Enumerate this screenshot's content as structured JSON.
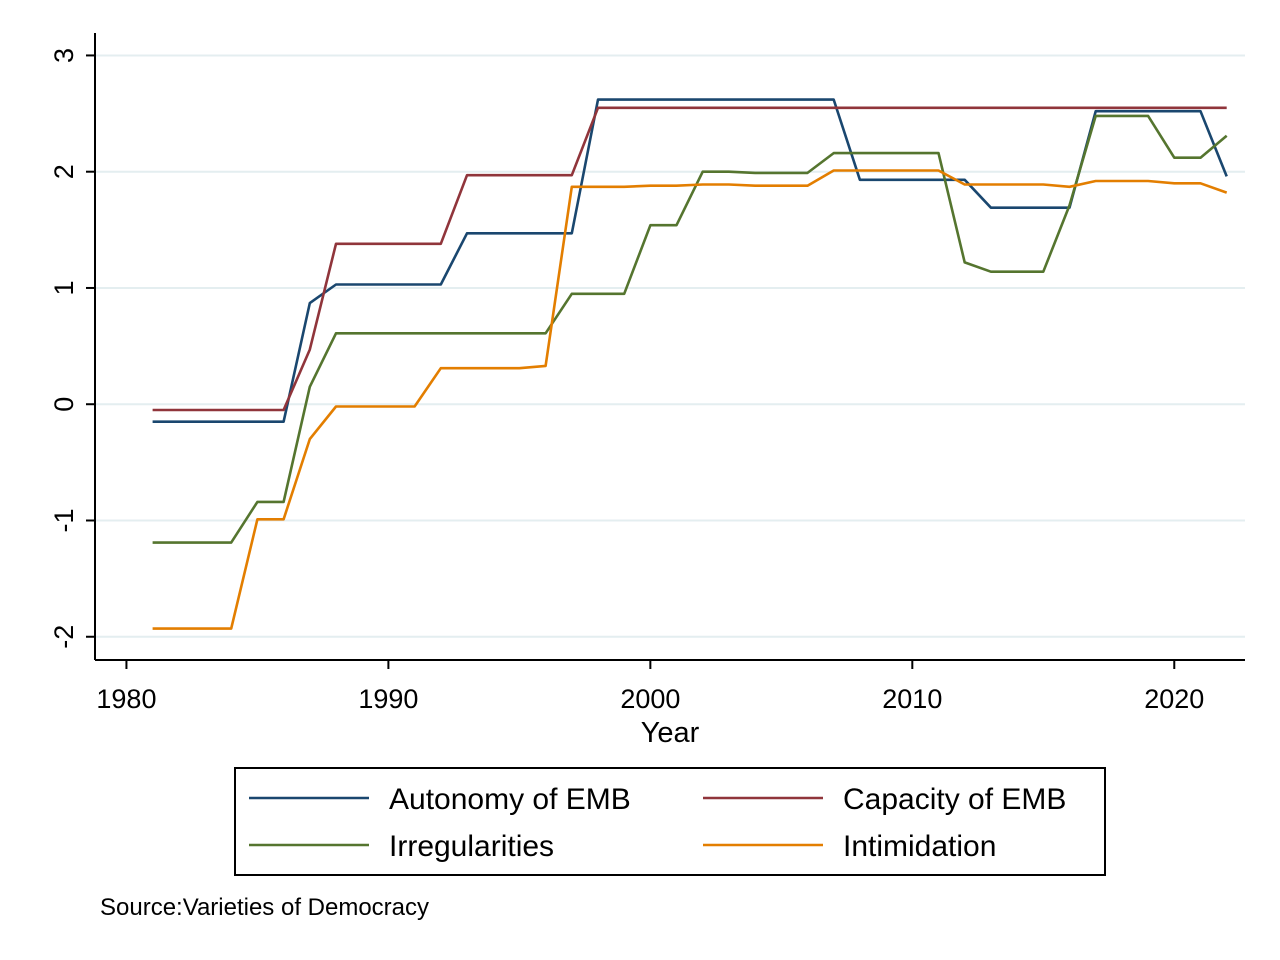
{
  "chart_data": {
    "type": "line",
    "title": "",
    "xlabel": "Year",
    "ylabel": "",
    "xlim": [
      1981,
      2022
    ],
    "ylim": [
      -2,
      3
    ],
    "x_ticks": [
      1980,
      1990,
      2000,
      2010,
      2020
    ],
    "y_ticks": [
      -2,
      -1,
      0,
      1,
      2,
      3
    ],
    "grid": true,
    "legend_placement": "bottom",
    "x": [
      1981,
      1982,
      1983,
      1984,
      1985,
      1986,
      1987,
      1988,
      1989,
      1990,
      1991,
      1992,
      1993,
      1994,
      1995,
      1996,
      1997,
      1998,
      1999,
      2000,
      2001,
      2002,
      2003,
      2004,
      2005,
      2006,
      2007,
      2008,
      2009,
      2010,
      2011,
      2012,
      2013,
      2014,
      2015,
      2016,
      2017,
      2018,
      2019,
      2020,
      2021,
      2022
    ],
    "series": [
      {
        "name": "Autonomy of EMB",
        "color": "#1a476f",
        "values": [
          -0.15,
          -0.15,
          -0.15,
          -0.15,
          -0.15,
          -0.15,
          0.87,
          1.03,
          1.03,
          1.03,
          1.03,
          1.03,
          1.47,
          1.47,
          1.47,
          1.47,
          1.47,
          2.62,
          2.62,
          2.62,
          2.62,
          2.62,
          2.62,
          2.62,
          2.62,
          2.62,
          2.62,
          1.93,
          1.93,
          1.93,
          1.93,
          1.93,
          1.69,
          1.69,
          1.69,
          1.69,
          2.52,
          2.52,
          2.52,
          2.52,
          2.52,
          1.96
        ]
      },
      {
        "name": "Capacity of EMB",
        "color": "#90353b",
        "values": [
          -0.05,
          -0.05,
          -0.05,
          -0.05,
          -0.05,
          -0.05,
          0.47,
          1.38,
          1.38,
          1.38,
          1.38,
          1.38,
          1.97,
          1.97,
          1.97,
          1.97,
          1.97,
          2.55,
          2.55,
          2.55,
          2.55,
          2.55,
          2.55,
          2.55,
          2.55,
          2.55,
          2.55,
          2.55,
          2.55,
          2.55,
          2.55,
          2.55,
          2.55,
          2.55,
          2.55,
          2.55,
          2.55,
          2.55,
          2.55,
          2.55,
          2.55,
          2.55
        ]
      },
      {
        "name": "Irregularities",
        "color": "#55752f",
        "values": [
          -1.19,
          -1.19,
          -1.19,
          -1.19,
          -0.84,
          -0.84,
          0.15,
          0.61,
          0.61,
          0.61,
          0.61,
          0.61,
          0.61,
          0.61,
          0.61,
          0.61,
          0.95,
          0.95,
          0.95,
          1.54,
          1.54,
          2.0,
          2.0,
          1.99,
          1.99,
          1.99,
          2.16,
          2.16,
          2.16,
          2.16,
          2.16,
          1.22,
          1.14,
          1.14,
          1.14,
          1.71,
          2.48,
          2.48,
          2.48,
          2.12,
          2.12,
          2.31
        ]
      },
      {
        "name": "Intimidation",
        "color": "#e37e00",
        "values": [
          -1.93,
          -1.93,
          -1.93,
          -1.93,
          -0.99,
          -0.99,
          -0.3,
          -0.02,
          -0.02,
          -0.02,
          -0.02,
          0.31,
          0.31,
          0.31,
          0.31,
          0.33,
          1.87,
          1.87,
          1.87,
          1.88,
          1.88,
          1.89,
          1.89,
          1.88,
          1.88,
          1.88,
          2.01,
          2.01,
          2.01,
          2.01,
          2.01,
          1.89,
          1.89,
          1.89,
          1.89,
          1.87,
          1.92,
          1.92,
          1.92,
          1.9,
          1.9,
          1.82
        ]
      }
    ]
  },
  "legend": {
    "items": [
      {
        "label": "Autonomy of EMB",
        "color": "#1a476f"
      },
      {
        "label": "Capacity of EMB",
        "color": "#90353b"
      },
      {
        "label": "Irregularities",
        "color": "#55752f"
      },
      {
        "label": "Intimidation",
        "color": "#e37e00"
      }
    ]
  },
  "note": "Source:Varieties of Democracy"
}
